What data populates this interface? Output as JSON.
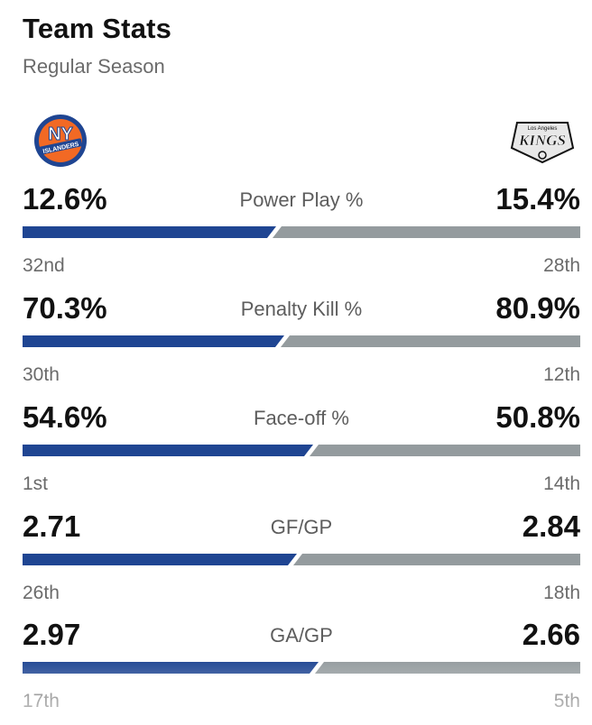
{
  "header": {
    "title": "Team Stats",
    "subtitle": "Regular Season"
  },
  "teams": {
    "left": {
      "logo_icon": "islanders-logo-icon",
      "logo_text": "ISLANDERS",
      "color": "#1f4592"
    },
    "right": {
      "logo_icon": "kings-logo-icon",
      "logo_text": "KINGS",
      "logo_subtext": "Los Angeles",
      "color": "#949b9e"
    }
  },
  "stats": [
    {
      "label": "Power Play %",
      "left_value": "12.6%",
      "right_value": "15.4%",
      "left_rank": "32nd",
      "right_rank": "28th",
      "left_share": 0.45
    },
    {
      "label": "Penalty Kill %",
      "left_value": "70.3%",
      "right_value": "80.9%",
      "left_rank": "30th",
      "right_rank": "12th",
      "left_share": 0.465
    },
    {
      "label": "Face-off %",
      "left_value": "54.6%",
      "right_value": "50.8%",
      "left_rank": "1st",
      "right_rank": "14th",
      "left_share": 0.518
    },
    {
      "label": "GF/GP",
      "left_value": "2.71",
      "right_value": "2.84",
      "left_rank": "26th",
      "right_rank": "18th",
      "left_share": 0.488
    },
    {
      "label": "GA/GP",
      "left_value": "2.97",
      "right_value": "2.66",
      "left_rank": "17th",
      "right_rank": "5th",
      "left_share": 0.528
    }
  ]
}
